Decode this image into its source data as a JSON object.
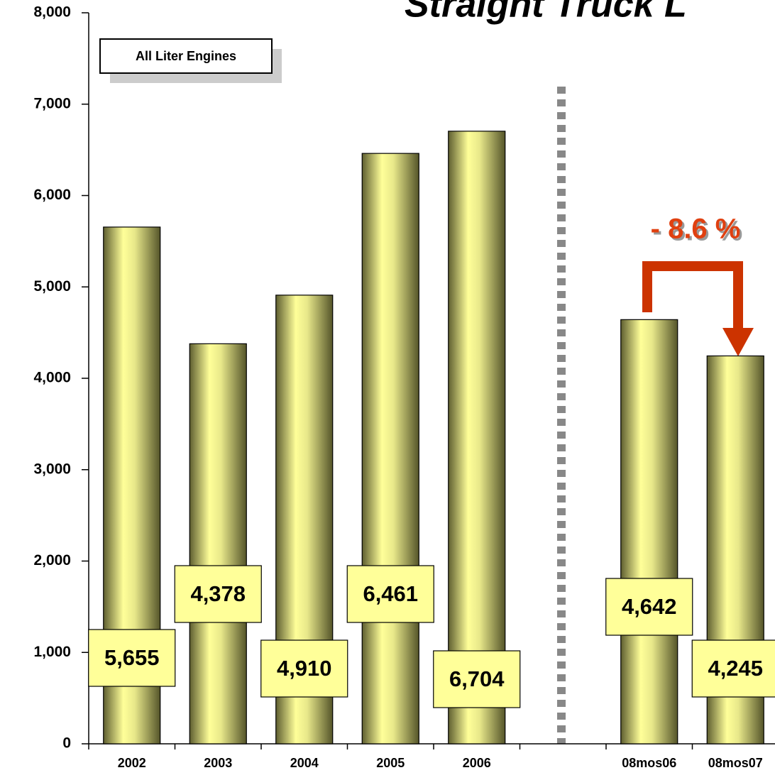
{
  "chart_data": {
    "type": "bar",
    "title": "Straight Truck L",
    "annotations": [
      "All Liter Engines",
      "- 8.6 %"
    ],
    "categories": [
      "2002",
      "2003",
      "2004",
      "2005",
      "2006",
      null,
      "08mos06",
      "08mos07"
    ],
    "values": [
      5655,
      4378,
      4910,
      6461,
      6704,
      null,
      4642,
      4245
    ],
    "value_labels": [
      "5,655",
      "4,378",
      "4,910",
      "6,461",
      "6,704",
      null,
      "4,642",
      "4,245"
    ],
    "ylim": [
      0,
      8000
    ],
    "yticks": [
      0,
      {
        "value": 1000,
        "label": "1,000"
      },
      {
        "value": 2000,
        "label": "2,000"
      },
      {
        "value": 3000,
        "label": "3,000"
      },
      {
        "value": 4000,
        "label": "4,000"
      },
      {
        "value": 5000,
        "label": "5,000"
      },
      {
        "value": 6000,
        "label": "6,000"
      },
      {
        "value": 7000,
        "label": "7,000"
      },
      {
        "value": 8000,
        "label": "8,000"
      }
    ],
    "color": "#ffff99",
    "grid": false
  }
}
